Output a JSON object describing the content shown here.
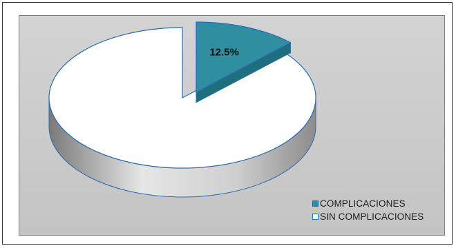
{
  "colors": {
    "complicaciones": "#2f8ea0",
    "complicaciones_side": "#1f6e7e",
    "sin_complicaciones": "#ffffff",
    "slice_edge": "#2a6bb0",
    "side_dark": "#8a8a8a"
  },
  "chart_data": {
    "type": "pie",
    "title": "",
    "style": "3d-exploded",
    "legend_position": "bottom-right",
    "categories": [
      "COMPLICACIONES",
      "SIN COMPLICACIONES"
    ],
    "values": [
      12.5,
      87.5
    ],
    "data_labels": [
      "12.5%",
      ""
    ]
  },
  "legend": {
    "items": [
      {
        "label": "COMPLICACIONES"
      },
      {
        "label": "SIN COMPLICACIONES"
      }
    ]
  }
}
